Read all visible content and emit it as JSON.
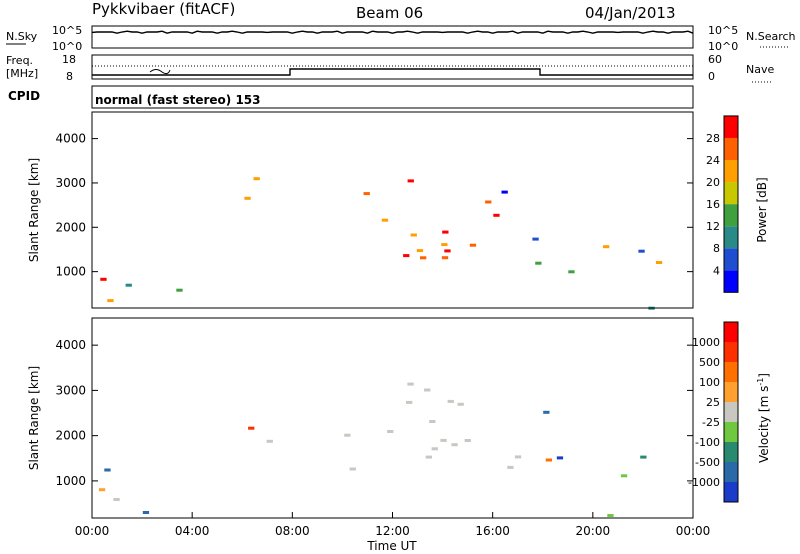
{
  "header": {
    "radar": "Pykkvibaer (fitACF)",
    "beam": "Beam 06",
    "date": "04/Jan/2013"
  },
  "strip_panels": {
    "nsky": {
      "label": "N.Sky",
      "top_tick": "10^5",
      "bottom_tick": "10^0"
    },
    "nsearch": {
      "label": "N.Search",
      "top_tick": "10^5",
      "bottom_tick": "10^0"
    },
    "freq": {
      "label_line1": "Freq.",
      "label_line2": "[MHz]",
      "ticks": [
        "18",
        "8"
      ]
    },
    "nave": {
      "label": "Nave",
      "ticks": [
        "60",
        "0"
      ]
    },
    "cpid": {
      "label": "CPID",
      "value": "normal (fast stereo) 153"
    }
  },
  "chart_data": [
    {
      "type": "heatmap",
      "panel": "power",
      "ylabel": "Slant Range [km]",
      "xlabel": "",
      "ylim": [
        180,
        4600
      ],
      "xlim": [
        0,
        24
      ],
      "y_ticks": [
        "1000",
        "2000",
        "3000",
        "4000"
      ],
      "colorbar": {
        "label": "Power [dB]",
        "ticks": [
          "4",
          "8",
          "12",
          "16",
          "20",
          "24",
          "28"
        ],
        "colors": [
          "#0000ff",
          "#1f4fd0",
          "#2a8a88",
          "#40a040",
          "#c8c800",
          "#ffa000",
          "#ff6000",
          "#ff0000"
        ]
      }
    },
    {
      "type": "heatmap",
      "panel": "velocity",
      "ylabel": "Slant Range [km]",
      "xlabel": "Time UT",
      "ylim": [
        180,
        4600
      ],
      "xlim": [
        0,
        24
      ],
      "y_ticks": [
        "1000",
        "2000",
        "3000",
        "4000"
      ],
      "x_ticks": [
        "00:00",
        "04:00",
        "08:00",
        "12:00",
        "16:00",
        "20:00",
        "00:00"
      ],
      "colorbar": {
        "label": "Velocity [m s",
        "label_sup": "-1",
        "label_end": "]",
        "ticks": [
          "1000",
          "500",
          "100",
          "25",
          "-25",
          "-100",
          "-500",
          "-1000"
        ],
        "colors": [
          "#1a3cc8",
          "#2a6aa8",
          "#2a8a70",
          "#70c840",
          "#c8c8c0",
          "#ffa030",
          "#ff7000",
          "#ff3000",
          "#ff0000"
        ]
      }
    }
  ]
}
